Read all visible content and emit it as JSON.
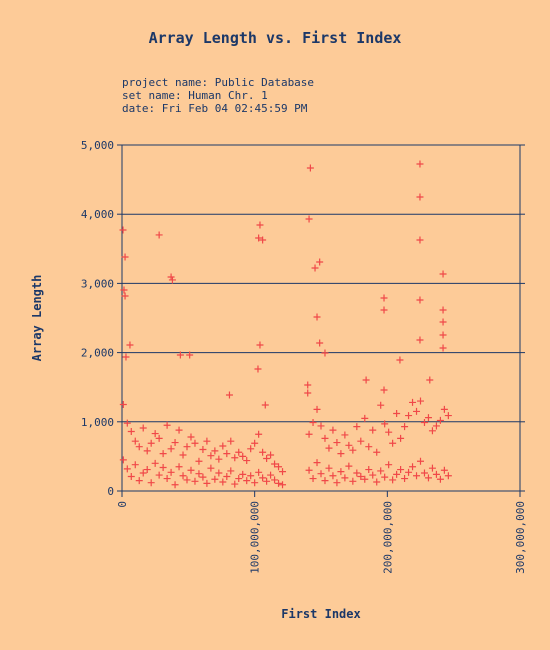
{
  "chart_data": {
    "type": "scatter",
    "title": "Array Length vs. First Index",
    "info": [
      "project name: Public Database",
      "set name: Human Chr. 1",
      "date: Fri Feb 04 02:45:59 PM"
    ],
    "x_label": "First Index",
    "y_label": "Array Length",
    "color": "#f04848",
    "grid": true,
    "xlim": [
      0,
      300000000
    ],
    "xticks": [
      0,
      {
        "value": 100000000,
        "label": "100,000,000"
      },
      {
        "value": 200000000,
        "label": "200,000,000"
      },
      {
        "value": 300000000,
        "label": "300,000,000"
      }
    ],
    "ylim": [
      0,
      5000
    ],
    "yticks": [
      0,
      {
        "value": 1000,
        "label": "1,000"
      },
      {
        "value": 2000,
        "label": "2,000"
      },
      {
        "value": 3000,
        "label": "3,000"
      },
      {
        "value": 4000,
        "label": "4,000"
      },
      {
        "value": 5000,
        "label": "5,000"
      }
    ],
    "x": [
      750000,
      2300000,
      1500000,
      2300000,
      6000000,
      3000000,
      28000000,
      37000000,
      38000000,
      44000000,
      51000000,
      81000000,
      104000000,
      103000000,
      106000000,
      104000000,
      102500000,
      108000000,
      142000000,
      141000000,
      145500000,
      149000000,
      147000000,
      149000000,
      153000000,
      197500000,
      197500000,
      224600000,
      224600000,
      224600000,
      224600000,
      242000000,
      242000000,
      242000000,
      242000000,
      242000000,
      224600000,
      140000000,
      140000000,
      184000000,
      197500000,
      209500000,
      232000000,
      1000000,
      4000000,
      7000000,
      10000000,
      13000000,
      16000000,
      19000000,
      22000000,
      25000000,
      28000000,
      31000000,
      34000000,
      37000000,
      40000000,
      43000000,
      46000000,
      49000000,
      52000000,
      55000000,
      58000000,
      61000000,
      64000000,
      67000000,
      70000000,
      73000000,
      76000000,
      79000000,
      82000000,
      85000000,
      88000000,
      91000000,
      94000000,
      97000000,
      100000000,
      103000000,
      106000000,
      109000000,
      112000000,
      115000000,
      118000000,
      121000000,
      1000000,
      4000000,
      7000000,
      10000000,
      13000000,
      16000000,
      19000000,
      22000000,
      25000000,
      28000000,
      31000000,
      34000000,
      37000000,
      40000000,
      43000000,
      46000000,
      49000000,
      52000000,
      55000000,
      58000000,
      61000000,
      64000000,
      67000000,
      70000000,
      73000000,
      76000000,
      79000000,
      82000000,
      85000000,
      88000000,
      91000000,
      94000000,
      97000000,
      100000000,
      103000000,
      106000000,
      109000000,
      112000000,
      115000000,
      118000000,
      121000000,
      141000000,
      144000000,
      147000000,
      150000000,
      153000000,
      156000000,
      159000000,
      162000000,
      165000000,
      168000000,
      171000000,
      174000000,
      177000000,
      180000000,
      183000000,
      186000000,
      189000000,
      192000000,
      195000000,
      198000000,
      201000000,
      204000000,
      207000000,
      210000000,
      213000000,
      216000000,
      219000000,
      222000000,
      225000000,
      228000000,
      231000000,
      234000000,
      237000000,
      240000000,
      243000000,
      246000000,
      141000000,
      144000000,
      147000000,
      150000000,
      153000000,
      156000000,
      159000000,
      162000000,
      165000000,
      168000000,
      171000000,
      174000000,
      177000000,
      180000000,
      183000000,
      186000000,
      189000000,
      192000000,
      195000000,
      198000000,
      201000000,
      204000000,
      207000000,
      210000000,
      213000000,
      216000000,
      219000000,
      222000000,
      225000000,
      228000000,
      231000000,
      234000000,
      237000000,
      240000000,
      243000000,
      246000000
    ],
    "values": [
      3772,
      3382,
      2905,
      2818,
      2110,
      1936,
      3700,
      3093,
      3050,
      1965,
      1965,
      1387,
      3844,
      3656,
      3627,
      2110,
      1763,
      1243,
      4668,
      3931,
      3223,
      3309,
      2514,
      2139,
      1994,
      2789,
      2616,
      4725,
      4249,
      3627,
      2760,
      3136,
      2616,
      2442,
      2254,
      2066,
      2182,
      1532,
      1416,
      1604,
      1460,
      1893,
      1604,
      1250,
      980,
      860,
      720,
      640,
      910,
      580,
      690,
      830,
      760,
      540,
      950,
      610,
      700,
      880,
      520,
      640,
      780,
      690,
      430,
      600,
      720,
      510,
      580,
      460,
      650,
      540,
      720,
      480,
      560,
      500,
      440,
      610,
      690,
      820,
      560,
      470,
      520,
      390,
      350,
      280,
      450,
      320,
      210,
      380,
      150,
      260,
      310,
      120,
      400,
      230,
      340,
      180,
      270,
      90,
      350,
      220,
      160,
      300,
      140,
      250,
      200,
      110,
      330,
      170,
      260,
      130,
      210,
      290,
      100,
      180,
      240,
      150,
      220,
      120,
      270,
      190,
      140,
      230,
      160,
      110,
      90,
      820,
      990,
      1180,
      940,
      760,
      620,
      880,
      700,
      540,
      810,
      660,
      590,
      930,
      720,
      1050,
      640,
      880,
      560,
      1240,
      970,
      850,
      690,
      1120,
      760,
      930,
      1090,
      1280,
      1150,
      1300,
      990,
      1060,
      870,
      940,
      1020,
      1180,
      1090,
      300,
      180,
      410,
      250,
      150,
      330,
      220,
      120,
      280,
      190,
      360,
      140,
      260,
      210,
      170,
      310,
      230,
      130,
      290,
      200,
      380,
      160,
      240,
      310,
      180,
      270,
      350,
      220,
      430,
      260,
      190,
      330,
      240,
      170,
      300,
      220
    ]
  }
}
